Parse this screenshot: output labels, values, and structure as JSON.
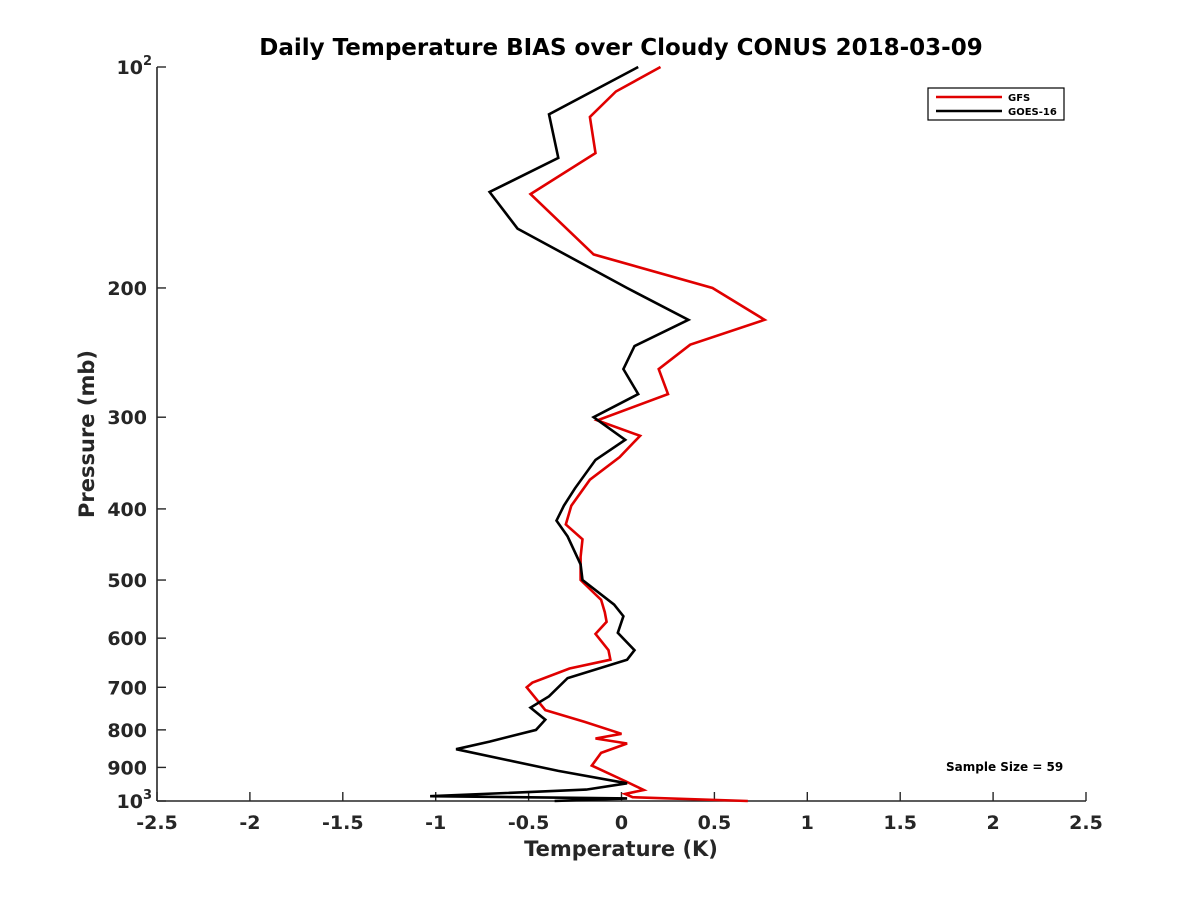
{
  "chart_data": {
    "type": "line",
    "title": "Daily Temperature BIAS over Cloudy CONUS 2018-03-09",
    "xlabel": "Temperature (K)",
    "ylabel": "Pressure (mb)",
    "xlim": [
      -2.5,
      2.5
    ],
    "ylim": [
      1000,
      100
    ],
    "yscale": "log",
    "y_reversed": true,
    "grid": false,
    "legend_position": "top-right",
    "x_ticks": [
      "-2.5",
      "-2",
      "-1.5",
      "-1",
      "-0.5",
      "0",
      "0.5",
      "1",
      "1.5",
      "2",
      "2.5"
    ],
    "y_ticks": [
      {
        "value": 100,
        "label": "10",
        "sup": "2"
      },
      {
        "value": 200,
        "label": "200"
      },
      {
        "value": 300,
        "label": "300"
      },
      {
        "value": 400,
        "label": "400"
      },
      {
        "value": 500,
        "label": "500"
      },
      {
        "value": 600,
        "label": "600"
      },
      {
        "value": 700,
        "label": "700"
      },
      {
        "value": 800,
        "label": "800"
      },
      {
        "value": 900,
        "label": "900"
      },
      {
        "value": 1000,
        "label": "10",
        "sup": "3"
      }
    ],
    "annotation": "Sample Size = 59",
    "series": [
      {
        "name": "GFS",
        "color": "#e00000",
        "points": [
          [
            0.21,
            100
          ],
          [
            -0.03,
            108
          ],
          [
            -0.17,
            117
          ],
          [
            -0.14,
            131
          ],
          [
            -0.49,
            149
          ],
          [
            -0.15,
            180
          ],
          [
            0.49,
            200
          ],
          [
            0.77,
            221
          ],
          [
            0.37,
            239
          ],
          [
            0.2,
            258
          ],
          [
            0.25,
            279
          ],
          [
            -0.13,
            303
          ],
          [
            0.1,
            318
          ],
          [
            -0.01,
            340
          ],
          [
            -0.17,
            365
          ],
          [
            -0.27,
            396
          ],
          [
            -0.3,
            420
          ],
          [
            -0.21,
            440
          ],
          [
            -0.22,
            465
          ],
          [
            -0.22,
            500
          ],
          [
            -0.11,
            532
          ],
          [
            -0.09,
            553
          ],
          [
            -0.08,
            570
          ],
          [
            -0.14,
            592
          ],
          [
            -0.07,
            623
          ],
          [
            -0.06,
            642
          ],
          [
            -0.28,
            660
          ],
          [
            -0.48,
            690
          ],
          [
            -0.51,
            700
          ],
          [
            -0.41,
            752
          ],
          [
            -0.2,
            780
          ],
          [
            0.0,
            810
          ],
          [
            -0.14,
            822
          ],
          [
            0.03,
            835
          ],
          [
            -0.11,
            860
          ],
          [
            -0.16,
            895
          ],
          [
            0.03,
            942
          ],
          [
            0.12,
            966
          ],
          [
            0.02,
            978
          ],
          [
            0.06,
            988
          ],
          [
            0.68,
            1000
          ]
        ]
      },
      {
        "name": "GOES-16",
        "color": "#000000",
        "points": [
          [
            0.09,
            100
          ],
          [
            -0.39,
            116
          ],
          [
            -0.34,
            133
          ],
          [
            -0.71,
            148
          ],
          [
            -0.56,
            166
          ],
          [
            0.03,
            200
          ],
          [
            0.36,
            221
          ],
          [
            0.07,
            240
          ],
          [
            0.01,
            258
          ],
          [
            0.09,
            279
          ],
          [
            -0.15,
            300
          ],
          [
            0.02,
            322
          ],
          [
            -0.14,
            343
          ],
          [
            -0.25,
            375
          ],
          [
            -0.31,
            396
          ],
          [
            -0.35,
            415
          ],
          [
            -0.29,
            436
          ],
          [
            -0.22,
            476
          ],
          [
            -0.21,
            500
          ],
          [
            -0.04,
            540
          ],
          [
            0.01,
            560
          ],
          [
            -0.02,
            590
          ],
          [
            0.07,
            623
          ],
          [
            0.03,
            642
          ],
          [
            -0.29,
            680
          ],
          [
            -0.39,
            720
          ],
          [
            -0.49,
            746
          ],
          [
            -0.41,
            775
          ],
          [
            -0.46,
            800
          ],
          [
            -0.71,
            830
          ],
          [
            -0.89,
            850
          ],
          [
            -0.34,
            910
          ],
          [
            0.03,
            946
          ],
          [
            -0.19,
            965
          ],
          [
            -1.03,
            985
          ],
          [
            0.03,
            992
          ],
          [
            -0.36,
            1000
          ]
        ]
      }
    ]
  }
}
